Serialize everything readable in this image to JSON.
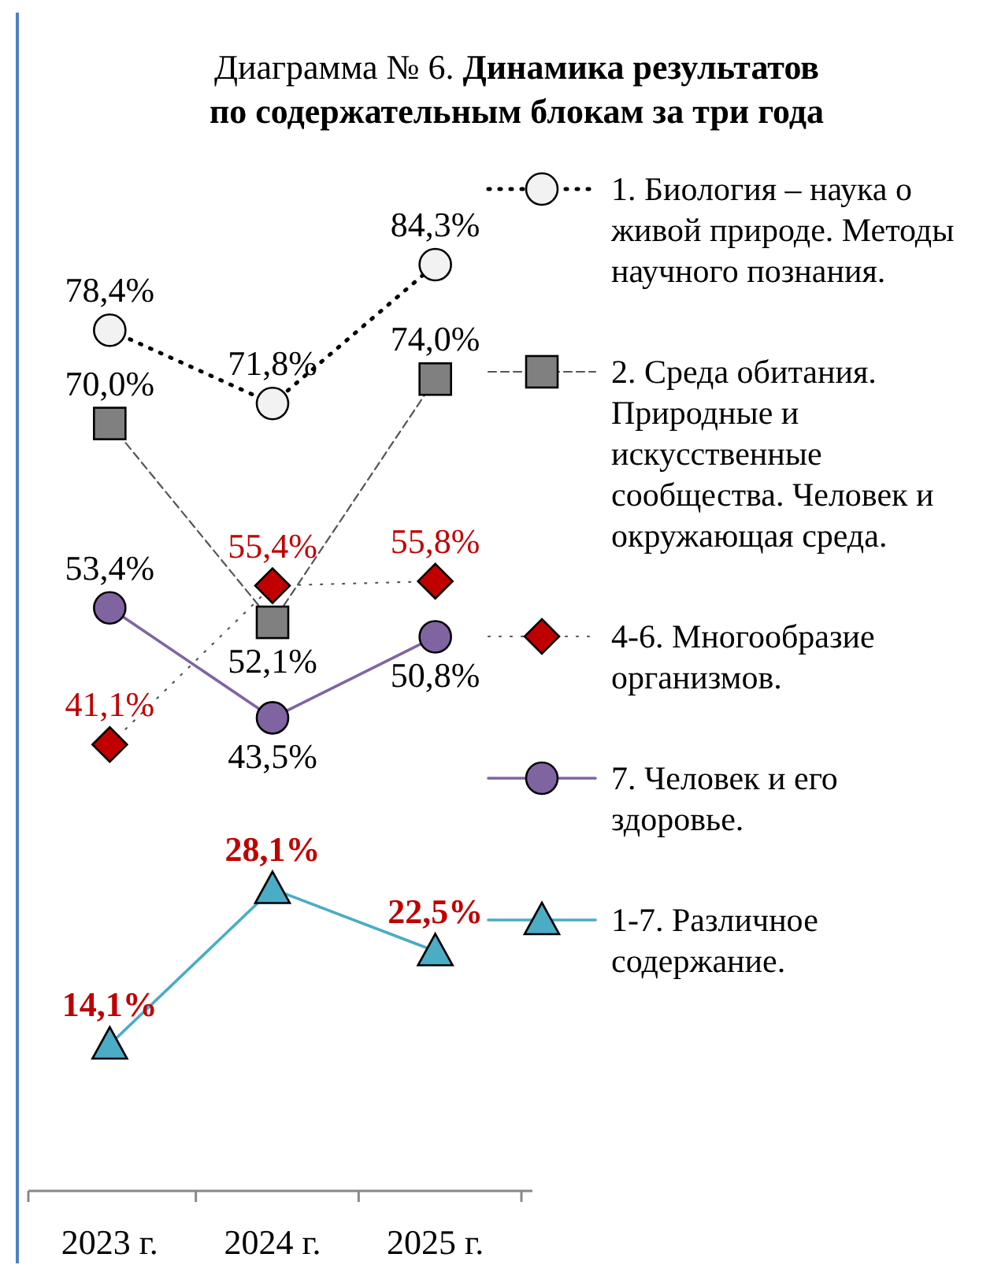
{
  "chart_data": {
    "type": "line",
    "title": "Диаграмма № 6.",
    "subtitle": "Динамика результатов по содержательным блокам за три года",
    "categories": [
      "2023 г.",
      "2024 г.",
      "2025 г."
    ],
    "legend": "right",
    "tick_labels": "x",
    "series": [
      {
        "name": "1. Биология – наука о живой природе. Методы научного познания.",
        "color": "#f2f2f2",
        "marker": "circle",
        "line_style": "dotted",
        "values": [
          78.4,
          71.8,
          84.3
        ],
        "value_labels": [
          "78,4%",
          "71,8%",
          "84,3%"
        ]
      },
      {
        "name": "2. Среда обитания. Природные и искусственные сообщества. Человек и окружающая среда.",
        "color": "#808080",
        "marker": "square",
        "line_style": "dashed",
        "values": [
          70.0,
          52.1,
          74.0
        ],
        "value_labels": [
          "70,0%",
          "52,1%",
          "74,0%"
        ]
      },
      {
        "name": "4-6. Многообразие организмов.",
        "color": "#c00000",
        "marker": "diamond",
        "line_style": "dotted",
        "values": [
          41.1,
          55.4,
          55.8
        ],
        "value_labels": [
          "41,1%",
          "55,4%",
          "55,8%"
        ]
      },
      {
        "name": "7. Человек и его здоровье.",
        "color": "#8064a2",
        "marker": "circle",
        "line_style": "solid",
        "values": [
          53.4,
          43.5,
          50.8
        ],
        "value_labels": [
          "53,4%",
          "43,5%",
          "50,8%"
        ]
      },
      {
        "name": "1-7. Различное содержание.",
        "color": "#4bacc6",
        "marker": "triangle",
        "line_style": "solid",
        "values": [
          14.1,
          28.1,
          22.5
        ],
        "value_labels": [
          "14,1%",
          "28,1%",
          "22,5%"
        ]
      }
    ]
  }
}
